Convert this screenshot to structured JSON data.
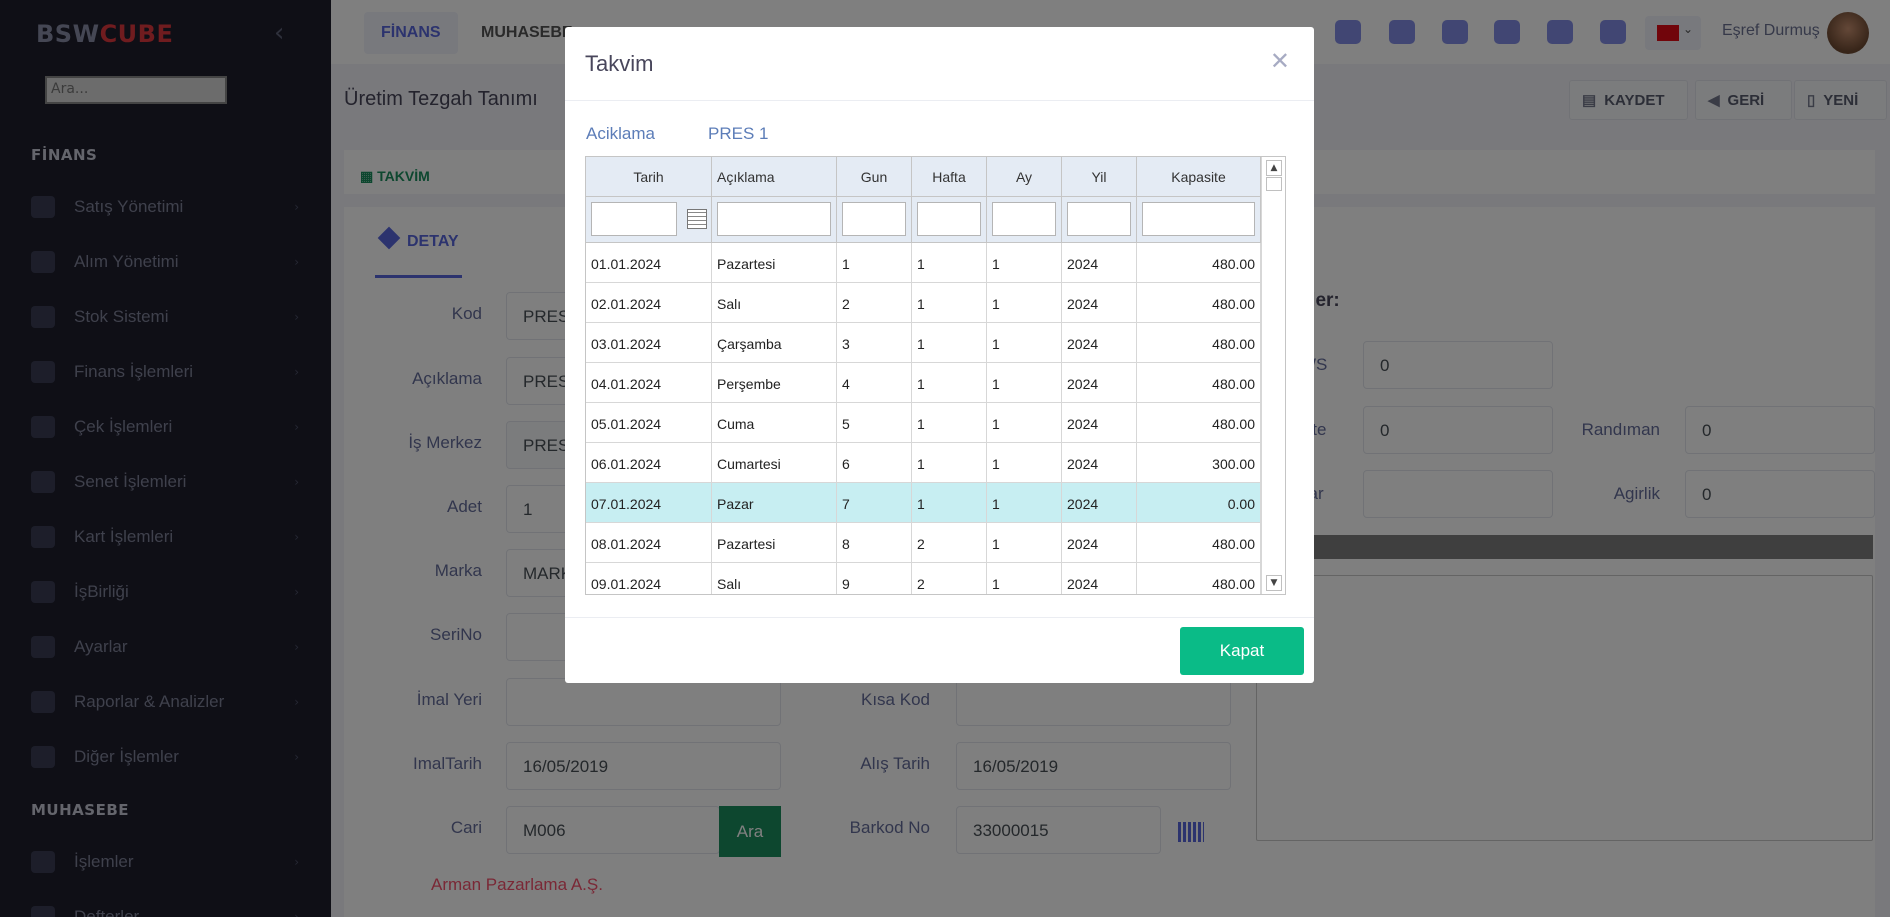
{
  "app": {
    "logo_part1": "BSW",
    "logo_part2": "CUBE"
  },
  "sidebar": {
    "search_placeholder": "Ara...",
    "section1": "FİNANS",
    "items": [
      {
        "label": "Satış Yönetimi",
        "icon": "basket-icon"
      },
      {
        "label": "Alım Yönetimi",
        "icon": "download-icon"
      },
      {
        "label": "Stok Sistemi",
        "icon": "grid-icon"
      },
      {
        "label": "Finans İşlemleri",
        "icon": "pencil-icon"
      },
      {
        "label": "Çek İşlemleri",
        "icon": "book-icon"
      },
      {
        "label": "Senet İşlemleri",
        "icon": "blocks-icon"
      },
      {
        "label": "Kart İşlemleri",
        "icon": "card-icon"
      },
      {
        "label": "İşBirliği",
        "icon": "users-icon"
      },
      {
        "label": "Ayarlar",
        "icon": "gear-icon"
      },
      {
        "label": "Raporlar & Analizler",
        "icon": "pie-icon"
      },
      {
        "label": "Diğer İşlemler",
        "icon": "book-open-icon"
      }
    ],
    "section2": "MUHASEBE",
    "items2": [
      {
        "label": "İşlemler",
        "icon": "pencil-icon"
      },
      {
        "label": "Defterler",
        "icon": "book-icon"
      }
    ]
  },
  "topbar": {
    "tabs": [
      "FİNANS",
      "MUHASEBE"
    ],
    "user_name": "Eşref Durmuş",
    "accent": "#5867dd"
  },
  "header": {
    "page_title": "Üretim Tezgah Tanımı",
    "save": "KAYDET",
    "back": "GERİ",
    "new": "YENİ"
  },
  "form": {
    "takvim_tab": "TAKVİM",
    "detay_tab": "DETAY",
    "labels": {
      "kod": "Kod",
      "aciklama": "Açıklama",
      "is_merkez": "İş Merkez",
      "adet": "Adet",
      "marka": "Marka",
      "serino": "SeriNo",
      "imal_yeri": "İmal Yeri",
      "imal_tarih": "ImalTarih",
      "cari": "Cari",
      "kisa_kod": "Kısa Kod",
      "alis_tarih": "Alış Tarih",
      "barkod_no": "Barkod No",
      "randiman": "Randıman",
      "agirlik": "Agirlik"
    },
    "values": {
      "kod": "PRES",
      "aciklama": "PRES",
      "is_merkez": "PRESI",
      "adet": "1",
      "marka": "MARK",
      "imal_tarih": "16/05/2019",
      "cari": "M006",
      "alis_tarih": "16/05/2019",
      "barkod_no": "33000015",
      "ws": "0",
      "kapasite": "0",
      "randiman": "0",
      "agirlik": "0"
    },
    "ara_button": "Ara",
    "cari_name": "Arman Pazarlama A.Ş.",
    "right_header": "lgiler:",
    "right_labels": {
      "ws": "WS",
      "site": "site",
      "tlar": "tlar"
    }
  },
  "modal": {
    "title": "Takvim",
    "aciklama_label": "Aciklama",
    "aciklama_value": "PRES 1",
    "columns": [
      "Tarih",
      "Açıklama",
      "Gun",
      "Hafta",
      "Ay",
      "Yil",
      "Kapasite"
    ],
    "rows": [
      [
        "01.01.2024",
        "Pazartesi",
        "1",
        "1",
        "1",
        "2024",
        "480.00"
      ],
      [
        "02.01.2024",
        "Salı",
        "2",
        "1",
        "1",
        "2024",
        "480.00"
      ],
      [
        "03.01.2024",
        "Çarşamba",
        "3",
        "1",
        "1",
        "2024",
        "480.00"
      ],
      [
        "04.01.2024",
        "Perşembe",
        "4",
        "1",
        "1",
        "2024",
        "480.00"
      ],
      [
        "05.01.2024",
        "Cuma",
        "5",
        "1",
        "1",
        "2024",
        "480.00"
      ],
      [
        "06.01.2024",
        "Cumartesi",
        "6",
        "1",
        "1",
        "2024",
        "300.00"
      ],
      [
        "07.01.2024",
        "Pazar",
        "7",
        "1",
        "1",
        "2024",
        "0.00"
      ],
      [
        "08.01.2024",
        "Pazartesi",
        "8",
        "2",
        "1",
        "2024",
        "480.00"
      ],
      [
        "09.01.2024",
        "Salı",
        "9",
        "2",
        "1",
        "2024",
        "480.00"
      ]
    ],
    "selected_row": 6,
    "close_button": "Kapat",
    "button_color": "#0abb87"
  }
}
